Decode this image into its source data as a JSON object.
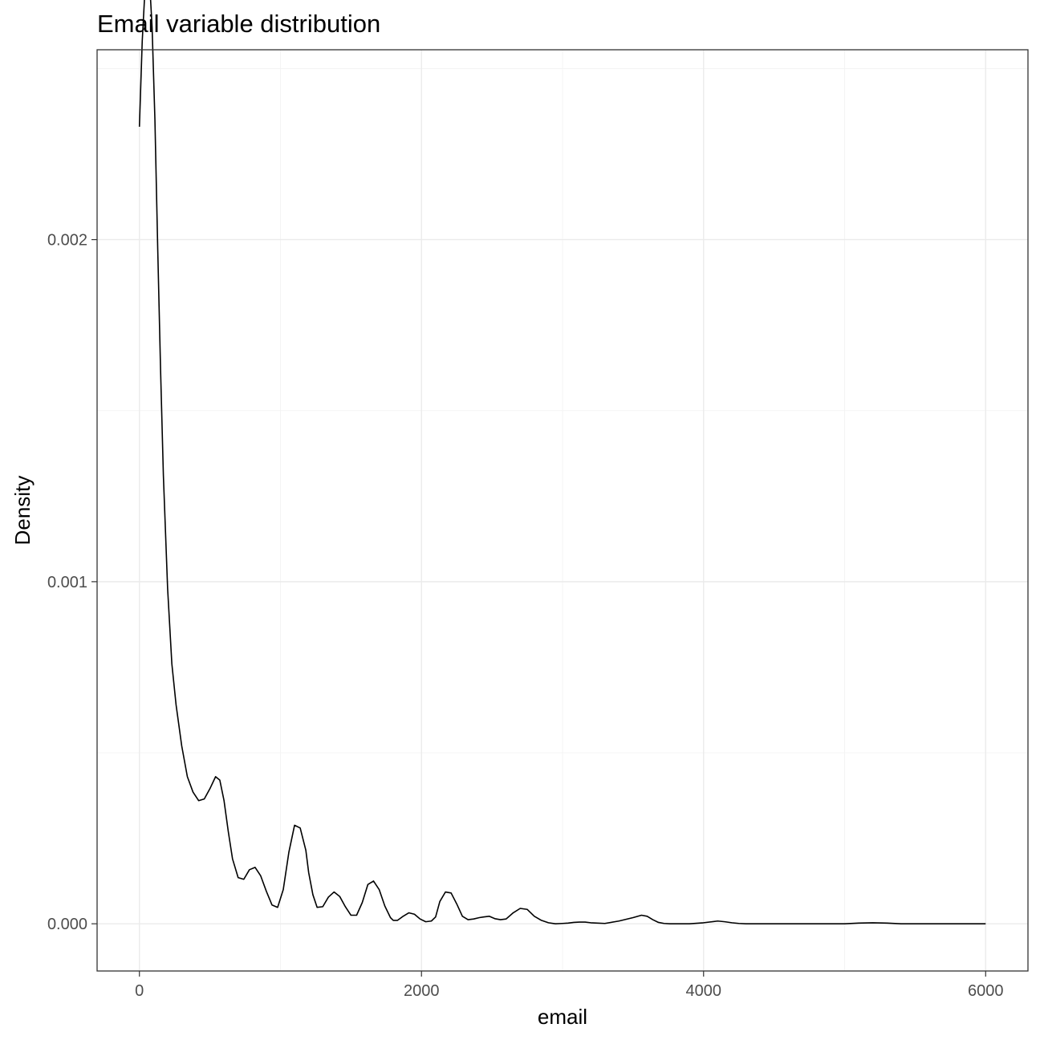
{
  "chart_data": {
    "type": "line",
    "title": "Email variable distribution",
    "xlabel": "email",
    "ylabel": "Density",
    "xlim": [
      -300,
      6300
    ],
    "ylim": [
      -0.000138,
      0.002555
    ],
    "x_ticks": [
      0,
      2000,
      4000,
      6000
    ],
    "x_tick_labels": [
      "0",
      "2000",
      "4000",
      "6000"
    ],
    "x_minor_ticks": [
      1000,
      3000,
      5000
    ],
    "y_ticks": [
      0,
      0.001,
      0.002
    ],
    "y_tick_labels": [
      "0.000",
      "0.001",
      "0.002"
    ],
    "y_minor_ticks": [
      0.0005,
      0.0015,
      0.0025
    ],
    "grid": true,
    "legend": "none",
    "line_color": "#000000",
    "series": [
      {
        "x": [
          0,
          20,
          40,
          55,
          70,
          90,
          110,
          130,
          150,
          170,
          200,
          230,
          260,
          300,
          340,
          380,
          420,
          460,
          500,
          540,
          570,
          600,
          630,
          660,
          700,
          740,
          780,
          820,
          860,
          900,
          940,
          980,
          1020,
          1060,
          1100,
          1140,
          1180,
          1200,
          1230,
          1260,
          1300,
          1340,
          1380,
          1420,
          1460,
          1500,
          1540,
          1580,
          1620,
          1660,
          1700,
          1740,
          1780,
          1800,
          1830,
          1870,
          1910,
          1950,
          1990,
          2030,
          2070,
          2100,
          2130,
          2170,
          2210,
          2250,
          2290,
          2330,
          2370,
          2410,
          2440,
          2480,
          2520,
          2560,
          2600,
          2650,
          2700,
          2750,
          2800,
          2850,
          2900,
          2950,
          3000,
          3040,
          3080,
          3120,
          3160,
          3200,
          3300,
          3400,
          3500,
          3560,
          3600,
          3640,
          3680,
          3720,
          3760,
          3800,
          3900,
          4000,
          4100,
          4150,
          4200,
          4250,
          4300,
          4400,
          4500,
          4600,
          4700,
          4800,
          4900,
          5000,
          5100,
          5200,
          5300,
          5400,
          5500,
          5600,
          5700,
          5800,
          5900,
          6000
        ],
        "values": [
          0.00233,
          0.00258,
          0.002735,
          0.00278,
          0.00277,
          0.00262,
          0.00235,
          0.00197,
          0.00162,
          0.00131,
          0.00098,
          0.00076,
          0.00064,
          0.00052,
          0.00043,
          0.000385,
          0.00036,
          0.000365,
          0.000395,
          0.00043,
          0.00042,
          0.00036,
          0.00027,
          0.00019,
          0.000135,
          0.00013,
          0.000158,
          0.000165,
          0.00014,
          9.5e-05,
          5.5e-05,
          4.8e-05,
          0.0001,
          0.00021,
          0.000288,
          0.00028,
          0.000215,
          0.00015,
          8.5e-05,
          4.8e-05,
          5e-05,
          7.8e-05,
          9.3e-05,
          8e-05,
          5e-05,
          2.5e-05,
          2.5e-05,
          6.2e-05,
          0.000115,
          0.000125,
          0.0001,
          5.2e-05,
          1.8e-05,
          1e-05,
          1e-05,
          2.2e-05,
          3.2e-05,
          2.8e-05,
          1.4e-05,
          6e-06,
          8e-06,
          2e-05,
          6.5e-05,
          9.3e-05,
          9e-05,
          5.8e-05,
          2.2e-05,
          1.2e-05,
          1.4e-05,
          1.8e-05,
          2e-05,
          2.2e-05,
          1.5e-05,
          1.2e-05,
          1.4e-05,
          3.2e-05,
          4.5e-05,
          4.2e-05,
          2.2e-05,
          1e-05,
          3e-06,
          0.0,
          1e-06,
          2e-06,
          4e-06,
          5e-06,
          5e-06,
          3e-06,
          1e-06,
          8e-06,
          1.8e-05,
          2.5e-05,
          2.2e-05,
          1.2e-05,
          4e-06,
          1e-06,
          0.0,
          0.0,
          0.0,
          3e-06,
          8e-06,
          6e-06,
          3e-06,
          1e-06,
          0.0,
          0.0,
          0.0,
          0.0,
          0.0,
          0.0,
          0.0,
          0.0,
          2e-06,
          3e-06,
          2e-06,
          0.0,
          0.0,
          0.0,
          0.0,
          0.0,
          0.0,
          0.0
        ]
      }
    ]
  }
}
